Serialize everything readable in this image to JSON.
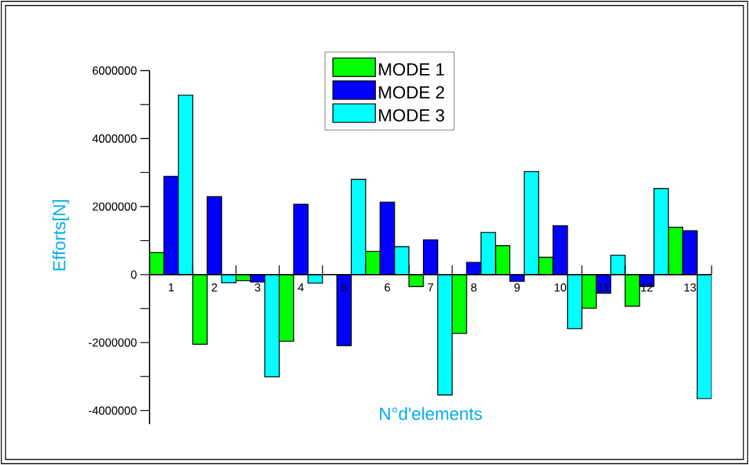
{
  "chart_data": {
    "type": "bar",
    "xlabel": "N°d'elements",
    "ylabel": "Efforts[N]",
    "categories": [
      "1",
      "2",
      "3",
      "4",
      "5",
      "6",
      "7",
      "8",
      "9",
      "10",
      "11",
      "12",
      "13"
    ],
    "series": [
      {
        "name": "MODE 1",
        "color": "#00ff00",
        "values": [
          650000,
          -2050000,
          -180000,
          -1960000,
          null,
          680000,
          -350000,
          -1730000,
          850000,
          510000,
          -990000,
          -930000,
          1390000
        ]
      },
      {
        "name": "MODE 2",
        "color": "#0000ff",
        "values": [
          2890000,
          2290000,
          -220000,
          2070000,
          -2090000,
          2130000,
          1020000,
          360000,
          -200000,
          1440000,
          -550000,
          -350000,
          1290000
        ]
      },
      {
        "name": "MODE 3",
        "color": "#00ffff",
        "values": [
          5280000,
          -240000,
          -3010000,
          -250000,
          2800000,
          820000,
          -3540000,
          1240000,
          3030000,
          -1590000,
          570000,
          2530000,
          -3650000
        ]
      }
    ],
    "ylim": [
      -4400000,
      6000000
    ],
    "yticks": [
      -4000000,
      -2000000,
      0,
      2000000,
      4000000,
      6000000
    ],
    "legend": "top"
  }
}
